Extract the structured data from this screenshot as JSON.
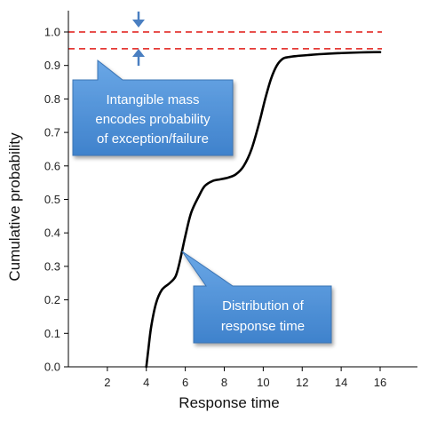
{
  "chart_data": {
    "type": "line",
    "xlabel": "Response time",
    "ylabel": "Cumulative probability",
    "xlim": [
      0,
      16.7
    ],
    "ylim": [
      0,
      1.02
    ],
    "x_ticks": [
      2,
      4,
      6,
      8,
      10,
      12,
      14,
      16
    ],
    "y_ticks": [
      0.0,
      0.1,
      0.2,
      0.3,
      0.4,
      0.5,
      0.6,
      0.7,
      0.8,
      0.9,
      1.0
    ],
    "grid": false,
    "series": [
      {
        "color": "#000000",
        "x": [
          4.0,
          4.1,
          4.25,
          4.5,
          4.8,
          5.2,
          5.5,
          5.7,
          6.0,
          6.3,
          6.7,
          7.0,
          7.4,
          7.8,
          8.2,
          8.6,
          9.0,
          9.4,
          9.8,
          10.1,
          10.4,
          10.7,
          11.0,
          11.3,
          11.7,
          12.3,
          13.0,
          14.0,
          15.0,
          16.0
        ],
        "y": [
          0.0,
          0.05,
          0.12,
          0.19,
          0.23,
          0.25,
          0.27,
          0.31,
          0.39,
          0.46,
          0.51,
          0.54,
          0.555,
          0.56,
          0.565,
          0.575,
          0.6,
          0.65,
          0.73,
          0.8,
          0.86,
          0.9,
          0.92,
          0.925,
          0.928,
          0.931,
          0.934,
          0.937,
          0.939,
          0.94
        ]
      }
    ],
    "reference_lines": [
      {
        "y": 1.0,
        "color": "#e53935",
        "style": "dashed"
      },
      {
        "y": 0.95,
        "color": "#e53935",
        "style": "dashed"
      }
    ],
    "annotations": [
      {
        "lines": [
          "Intangible mass",
          "encodes probability",
          "of exception/failure"
        ],
        "fill": "#4a8fd6"
      },
      {
        "lines": [
          "Distribution of",
          "response time"
        ],
        "fill": "#4a8fd6"
      }
    ],
    "arrow_color": "#4a7fc1"
  }
}
